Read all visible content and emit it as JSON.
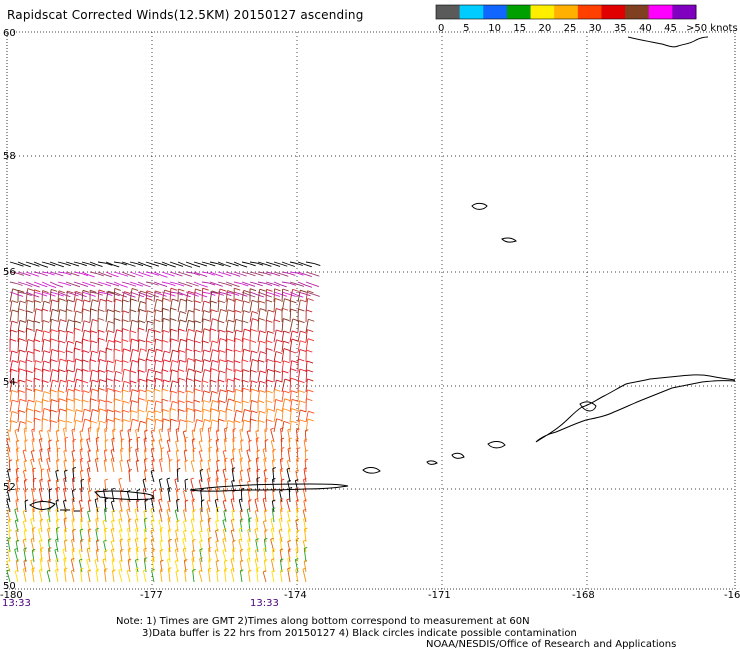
{
  "title": "Rapidscat Corrected Winds(12.5KM) 20150127 ascending",
  "colorbar": {
    "colors": [
      "#5a5a5a",
      "#00ccff",
      "#1066ff",
      "#00a000",
      "#ffee00",
      "#ffb000",
      "#ff4000",
      "#e00000",
      "#804020",
      "#ff00ff",
      "#8000c0"
    ],
    "ticks": [
      "0",
      "5",
      "10",
      "15",
      "20",
      "25",
      "30",
      "35",
      "40",
      "45",
      ">50 knots"
    ]
  },
  "axes": {
    "lat_labels": [
      "60",
      "58",
      "56",
      "54",
      "52",
      "50"
    ],
    "lon_labels": [
      "-180",
      "-177",
      "-174",
      "-171",
      "-168",
      "-16"
    ]
  },
  "times": [
    "13:33",
    "13:33"
  ],
  "notes": {
    "line1": "Note: 1) Times are GMT 2)Times along bottom correspond to measurement at 60N",
    "line2": "3)Data buffer is 22 hrs from 20150127 4) Black circles indicate possible contamination",
    "credit": "NOAA/NESDIS/Office of Research and Applications"
  }
}
